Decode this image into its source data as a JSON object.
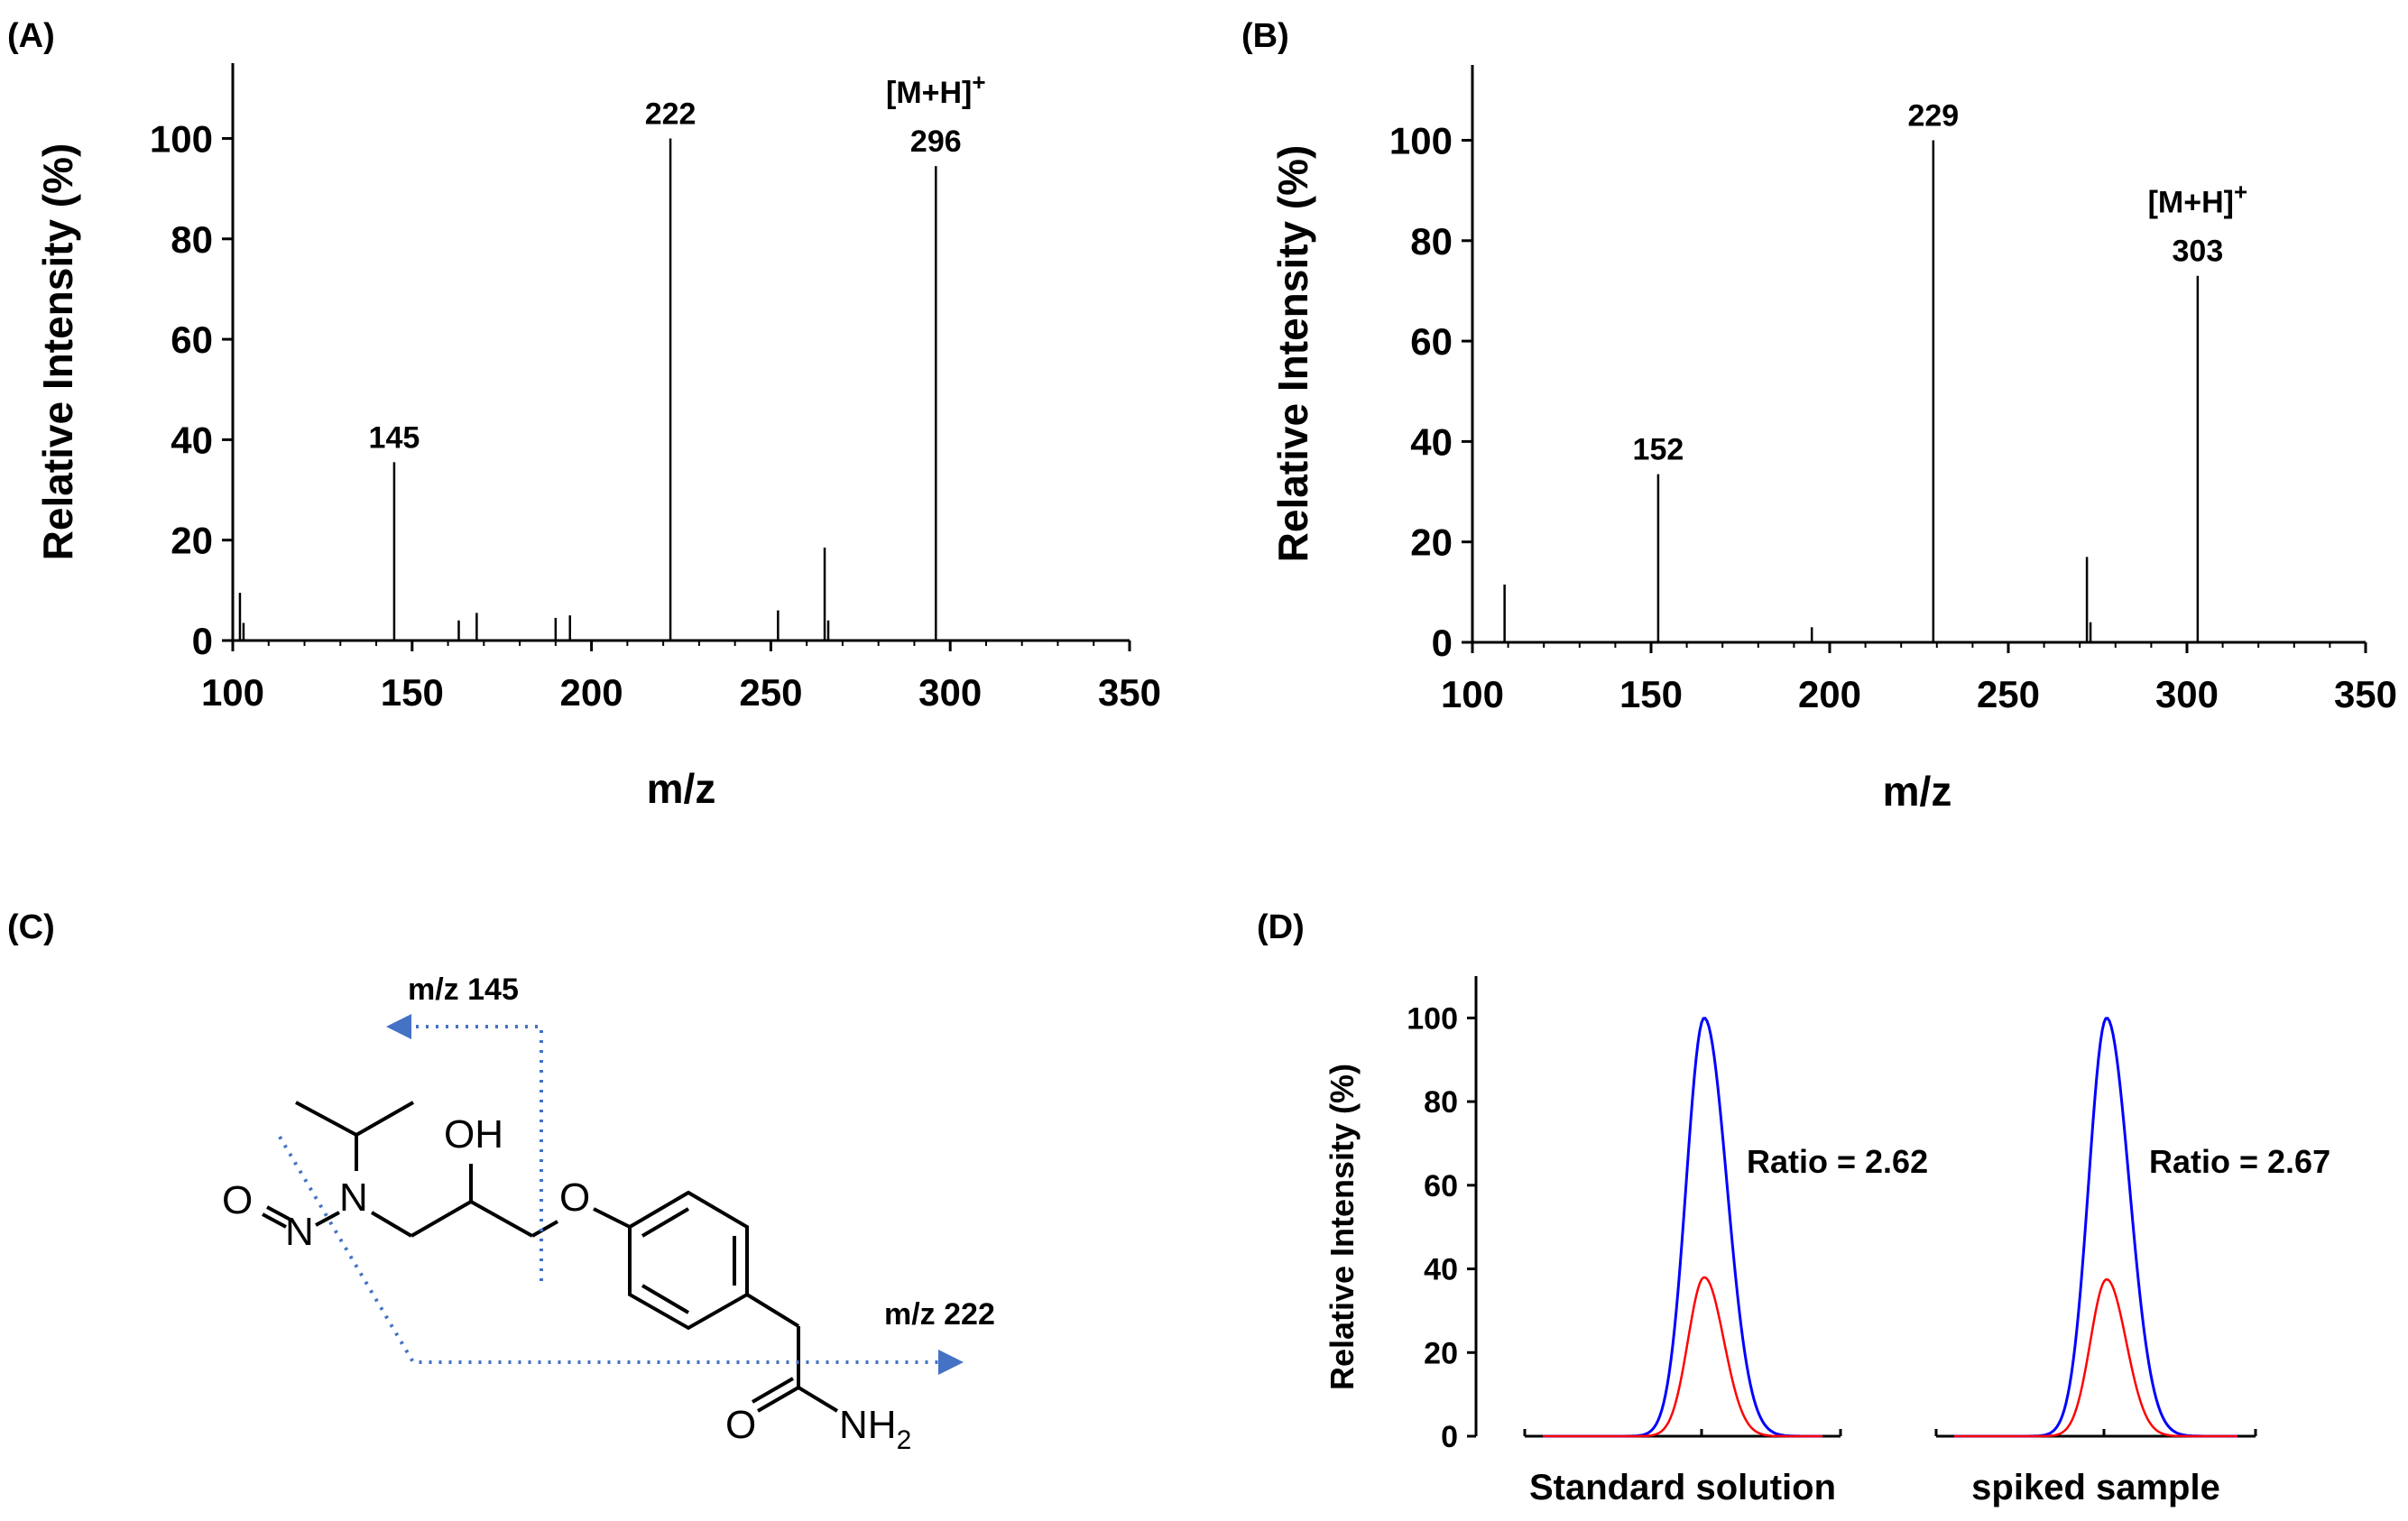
{
  "panel_labels": {
    "a": "(A)",
    "b": "(B)",
    "c": "(C)",
    "d": "(D)"
  },
  "colors": {
    "axis": "#000000",
    "spectrum": "#000000",
    "blue_trace": "#0000ff",
    "red_trace": "#ff0000",
    "fragment_arrow": "#4472c4"
  },
  "chart_data": [
    {
      "panel": "A",
      "type": "bar",
      "xlabel": "m/z",
      "ylabel": "Relative Intensity (%)",
      "xlim": [
        100,
        350
      ],
      "ylim": [
        0,
        115
      ],
      "xticks": [
        "100",
        "150",
        "200",
        "250",
        "300",
        "350"
      ],
      "yticks": [
        "0",
        "20",
        "40",
        "60",
        "80",
        "100"
      ],
      "peaks": [
        {
          "mz": 102,
          "intensity": 9.5
        },
        {
          "mz": 103,
          "intensity": 3.5
        },
        {
          "mz": 145,
          "intensity": 35.5
        },
        {
          "mz": 163,
          "intensity": 4
        },
        {
          "mz": 168,
          "intensity": 5.5
        },
        {
          "mz": 190,
          "intensity": 4.5
        },
        {
          "mz": 194,
          "intensity": 5
        },
        {
          "mz": 222,
          "intensity": 100
        },
        {
          "mz": 252,
          "intensity": 6
        },
        {
          "mz": 265,
          "intensity": 18.5
        },
        {
          "mz": 266,
          "intensity": 4
        },
        {
          "mz": 296,
          "intensity": 94.5
        }
      ],
      "annotations": [
        {
          "mz": 145,
          "intensity": 35.5,
          "text": "145"
        },
        {
          "mz": 222,
          "intensity": 100,
          "text": "222"
        },
        {
          "mz": 296,
          "intensity": 94.5,
          "text": "296",
          "ion": "[M+H]",
          "charge": "+"
        }
      ]
    },
    {
      "panel": "B",
      "type": "bar",
      "xlabel": "m/z",
      "ylabel": "Relative Intensity (%)",
      "xlim": [
        100,
        350
      ],
      "ylim": [
        0,
        115
      ],
      "xticks": [
        "100",
        "150",
        "200",
        "250",
        "300",
        "350"
      ],
      "yticks": [
        "0",
        "20",
        "40",
        "60",
        "80",
        "100"
      ],
      "peaks": [
        {
          "mz": 109,
          "intensity": 11.5
        },
        {
          "mz": 152,
          "intensity": 33.5
        },
        {
          "mz": 195,
          "intensity": 3
        },
        {
          "mz": 229,
          "intensity": 100
        },
        {
          "mz": 272,
          "intensity": 17
        },
        {
          "mz": 273,
          "intensity": 4
        },
        {
          "mz": 303,
          "intensity": 73
        }
      ],
      "annotations": [
        {
          "mz": 152,
          "intensity": 33.5,
          "text": "152"
        },
        {
          "mz": 229,
          "intensity": 100,
          "text": "229"
        },
        {
          "mz": 303,
          "intensity": 73,
          "text": "303",
          "ion": "[M+H]",
          "charge": "+"
        }
      ]
    },
    {
      "panel": "D",
      "type": "line",
      "ylabel": "Relative Intensity (%)",
      "ylim": [
        0,
        110
      ],
      "yticks": [
        "0",
        "20",
        "40",
        "60",
        "80",
        "100"
      ],
      "groups": [
        {
          "label": "Standard solution",
          "ratio_text": "Ratio = 2.62",
          "blue_peak": 100,
          "red_peak": 38
        },
        {
          "label": "spiked sample",
          "ratio_text": "Ratio = 2.67",
          "blue_peak": 100,
          "red_peak": 37.5
        }
      ]
    }
  ],
  "structure": {
    "fragment_145": "m/z 145",
    "fragment_222": "m/z 222",
    "atom_oh": "OH",
    "atom_o_nitroso": "O",
    "atom_n_nitroso": "N",
    "atom_n_amine": "N",
    "atom_o_ether": "O",
    "atom_o_amide": "O",
    "atom_nh": "NH",
    "atom_nh_sub": "2"
  }
}
